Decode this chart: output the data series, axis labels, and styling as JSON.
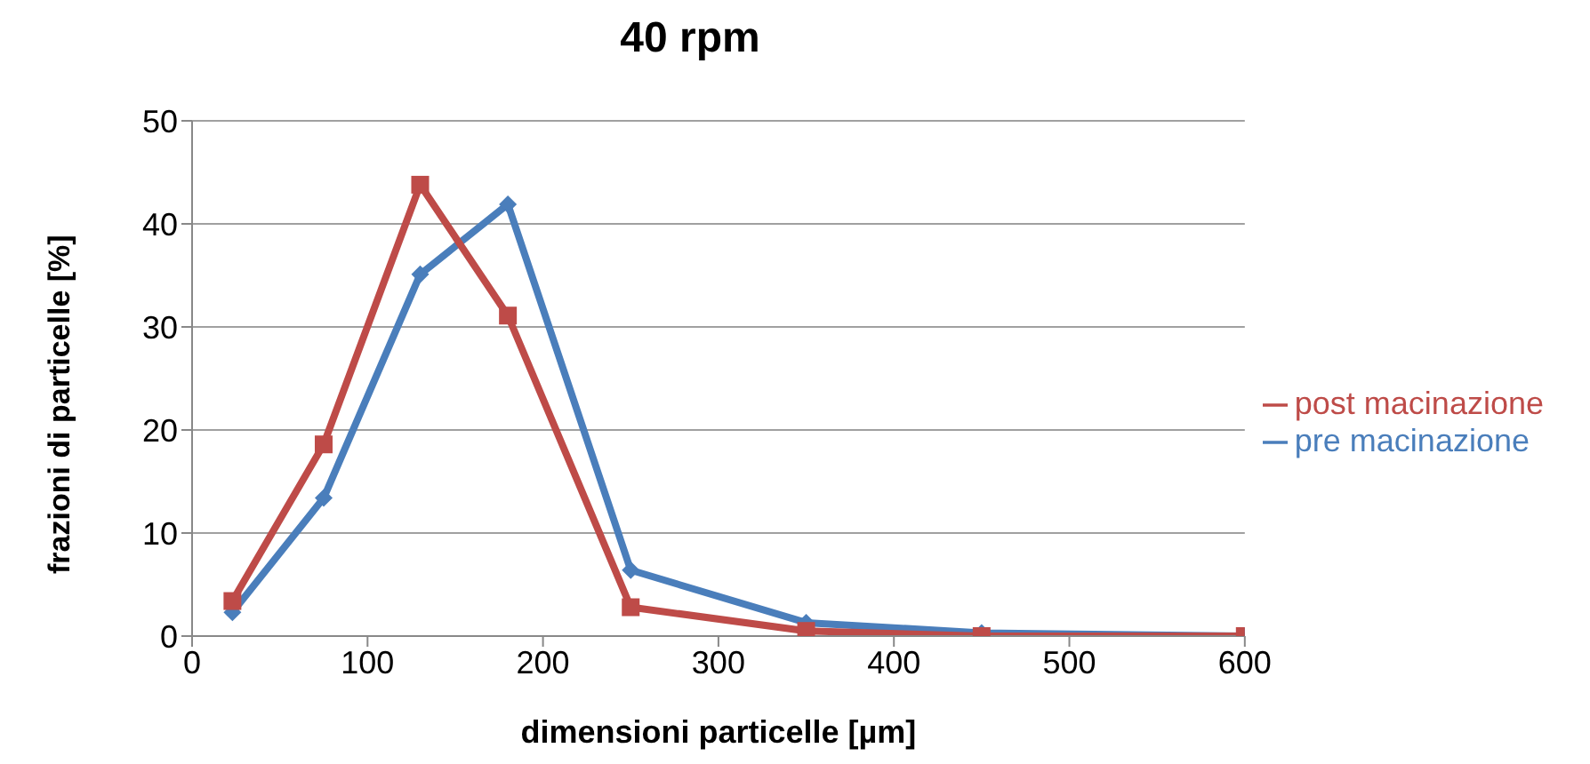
{
  "chart_data": {
    "type": "line",
    "title": "40 rpm",
    "xlabel": "dimensioni particelle [µm]",
    "ylabel": "frazioni di particelle [%]",
    "xlim": [
      0,
      600
    ],
    "xticks": [
      0,
      100,
      200,
      300,
      400,
      500,
      600
    ],
    "ylim": [
      0,
      50
    ],
    "yticks": [
      0,
      10,
      20,
      30,
      40,
      50
    ],
    "grid": "y",
    "legend": "right",
    "series": [
      {
        "name": "pre macinazione",
        "color": "#4a7ebb",
        "marker": "diamond",
        "x": [
          23,
          75,
          130,
          180,
          250,
          350,
          450,
          600
        ],
        "values": [
          2.3,
          13.4,
          35.1,
          41.9,
          6.4,
          1.3,
          0.3,
          0
        ]
      },
      {
        "name": "post macinazione",
        "color": "#be4b48",
        "marker": "square",
        "x": [
          23,
          75,
          130,
          180,
          250,
          350,
          450,
          600
        ],
        "values": [
          3.4,
          18.6,
          43.8,
          31.1,
          2.8,
          0.5,
          0,
          0
        ]
      }
    ]
  }
}
